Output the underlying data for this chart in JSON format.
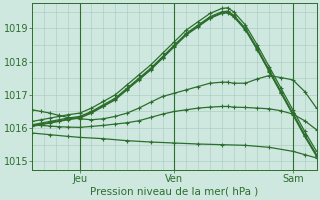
{
  "bg_color": "#cee8e0",
  "plot_bg_color": "#cee8e0",
  "line_color": "#2d6e2d",
  "grid_color": "#a8c8be",
  "tick_color": "#2d6e2d",
  "xlabel": "Pression niveau de la mer( hPa )",
  "ylim": [
    1014.75,
    1019.75
  ],
  "xlim": [
    0,
    96
  ],
  "xticks": [
    16,
    48,
    88
  ],
  "xticklabels": [
    "Jeu",
    "Ven",
    "Sam"
  ],
  "yticks": [
    1015,
    1016,
    1017,
    1018,
    1019
  ],
  "series": [
    {
      "x": [
        0,
        3,
        6,
        9,
        12,
        16,
        20,
        24,
        28,
        32,
        36,
        40,
        44,
        48,
        52,
        56,
        60,
        64,
        66,
        68,
        72,
        76,
        80,
        84,
        88,
        92,
        96
      ],
      "y": [
        1016.2,
        1016.25,
        1016.3,
        1016.35,
        1016.4,
        1016.45,
        1016.6,
        1016.8,
        1017.0,
        1017.3,
        1017.6,
        1017.9,
        1018.25,
        1018.6,
        1018.95,
        1019.2,
        1019.45,
        1019.6,
        1019.62,
        1019.5,
        1019.1,
        1018.5,
        1017.85,
        1017.2,
        1016.55,
        1015.9,
        1015.3
      ]
    },
    {
      "x": [
        0,
        3,
        6,
        9,
        12,
        16,
        20,
        24,
        28,
        32,
        36,
        40,
        44,
        48,
        52,
        56,
        60,
        64,
        66,
        68,
        72,
        76,
        80,
        84,
        88,
        92,
        96
      ],
      "y": [
        1016.1,
        1016.15,
        1016.2,
        1016.25,
        1016.3,
        1016.35,
        1016.5,
        1016.7,
        1016.9,
        1017.2,
        1017.5,
        1017.8,
        1018.15,
        1018.5,
        1018.85,
        1019.1,
        1019.35,
        1019.5,
        1019.52,
        1019.4,
        1019.0,
        1018.4,
        1017.75,
        1017.1,
        1016.45,
        1015.8,
        1015.2
      ]
    },
    {
      "x": [
        0,
        3,
        6,
        9,
        12,
        16,
        20,
        24,
        28,
        32,
        36,
        40,
        44,
        48,
        52,
        56,
        60,
        64,
        66,
        68,
        72,
        76,
        80,
        84,
        88,
        92,
        96
      ],
      "y": [
        1016.05,
        1016.1,
        1016.15,
        1016.2,
        1016.25,
        1016.3,
        1016.45,
        1016.65,
        1016.85,
        1017.15,
        1017.45,
        1017.75,
        1018.1,
        1018.45,
        1018.8,
        1019.05,
        1019.3,
        1019.45,
        1019.47,
        1019.35,
        1018.95,
        1018.35,
        1017.7,
        1017.05,
        1016.4,
        1015.75,
        1015.15
      ]
    },
    {
      "x": [
        0,
        3,
        6,
        9,
        12,
        16,
        20,
        24,
        28,
        32,
        36,
        40,
        44,
        48,
        52,
        56,
        60,
        64,
        66,
        68,
        72,
        76,
        80,
        84,
        88,
        92,
        96
      ],
      "y": [
        1016.08,
        1016.12,
        1016.17,
        1016.22,
        1016.27,
        1016.32,
        1016.47,
        1016.67,
        1016.87,
        1017.17,
        1017.47,
        1017.77,
        1018.12,
        1018.47,
        1018.82,
        1019.07,
        1019.32,
        1019.47,
        1019.49,
        1019.37,
        1018.97,
        1018.37,
        1017.72,
        1017.07,
        1016.42,
        1015.77,
        1015.17
      ]
    },
    {
      "x": [
        0,
        3,
        6,
        9,
        12,
        16,
        20,
        24,
        28,
        32,
        36,
        40,
        44,
        48,
        52,
        56,
        60,
        64,
        66,
        68,
        72,
        76,
        80,
        84,
        88,
        92,
        96
      ],
      "y": [
        1016.55,
        1016.5,
        1016.45,
        1016.38,
        1016.32,
        1016.28,
        1016.25,
        1016.28,
        1016.35,
        1016.45,
        1016.6,
        1016.78,
        1016.95,
        1017.05,
        1017.15,
        1017.25,
        1017.35,
        1017.38,
        1017.38,
        1017.35,
        1017.35,
        1017.48,
        1017.58,
        1017.52,
        1017.45,
        1017.1,
        1016.6
      ]
    },
    {
      "x": [
        0,
        3,
        6,
        9,
        12,
        16,
        20,
        24,
        28,
        32,
        36,
        40,
        44,
        48,
        52,
        56,
        60,
        64,
        66,
        68,
        72,
        76,
        80,
        84,
        88,
        92,
        96
      ],
      "y": [
        1016.1,
        1016.08,
        1016.06,
        1016.04,
        1016.03,
        1016.02,
        1016.05,
        1016.08,
        1016.12,
        1016.16,
        1016.22,
        1016.32,
        1016.42,
        1016.5,
        1016.55,
        1016.6,
        1016.63,
        1016.65,
        1016.65,
        1016.63,
        1016.62,
        1016.6,
        1016.58,
        1016.52,
        1016.42,
        1016.22,
        1015.95
      ]
    },
    {
      "x": [
        0,
        6,
        12,
        16,
        24,
        32,
        40,
        48,
        56,
        64,
        72,
        80,
        88,
        92,
        96
      ],
      "y": [
        1015.85,
        1015.8,
        1015.75,
        1015.72,
        1015.68,
        1015.62,
        1015.58,
        1015.55,
        1015.52,
        1015.5,
        1015.48,
        1015.42,
        1015.3,
        1015.2,
        1015.1
      ]
    }
  ]
}
